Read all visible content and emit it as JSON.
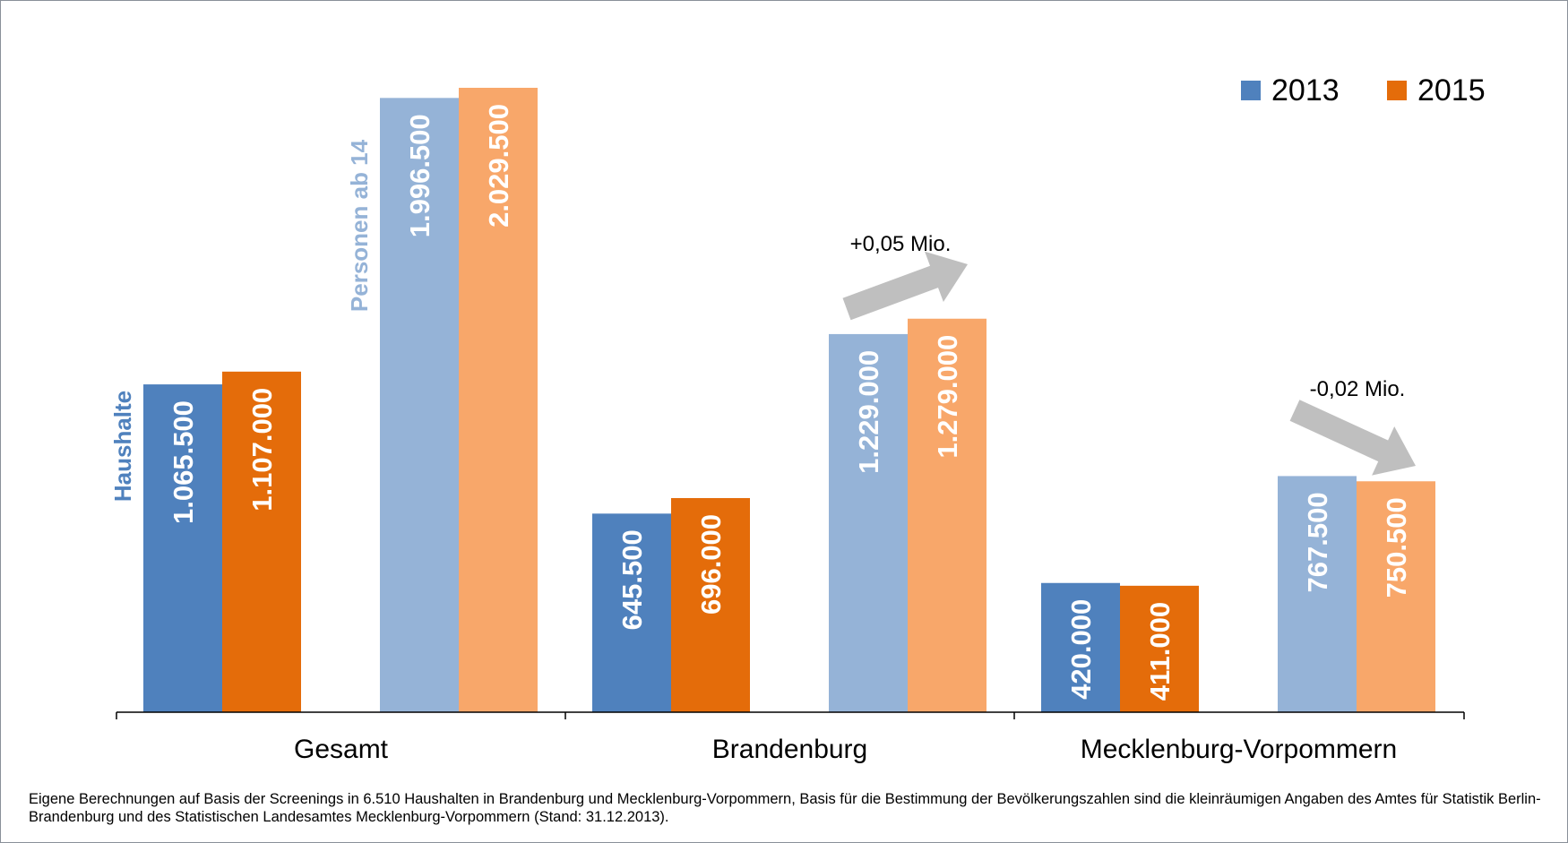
{
  "chart_data": {
    "type": "bar",
    "categories": [
      "Gesamt",
      "Brandenburg",
      "Mecklenburg-Vorpommern"
    ],
    "groups": [
      {
        "name": "Haushalte",
        "label": "Haushalte"
      },
      {
        "name": "Personen ab 14",
        "label": "Personen ab 14"
      }
    ],
    "series": [
      {
        "name": "2013",
        "group": "Haushalte",
        "values": [
          1065500,
          645500,
          420000
        ],
        "labels": [
          "1.065.500",
          "645.500",
          "420.000"
        ],
        "color": "#4F81BD"
      },
      {
        "name": "2015",
        "group": "Haushalte",
        "values": [
          1107000,
          696000,
          411000
        ],
        "labels": [
          "1.107.000",
          "696.000",
          "411.000"
        ],
        "color": "#E46C0A"
      },
      {
        "name": "2013",
        "group": "Personen ab 14",
        "values": [
          1996500,
          1229000,
          767500
        ],
        "labels": [
          "1.996.500",
          "1.229.000",
          "767.500"
        ],
        "color": "#95B3D7"
      },
      {
        "name": "2015",
        "group": "Personen ab 14",
        "values": [
          2029500,
          1279000,
          750500
        ],
        "labels": [
          "2.029.500",
          "1.279.000",
          "750.500"
        ],
        "color": "#F8A76A"
      }
    ],
    "legend": {
      "position": "top-right",
      "items": [
        {
          "label": "2013",
          "color": "#4F81BD"
        },
        {
          "label": "2015",
          "color": "#E46C0A"
        }
      ]
    },
    "annotations": [
      {
        "text": "+0,05 Mio.",
        "category": "Brandenburg",
        "direction": "up"
      },
      {
        "text": "-0,02 Mio.",
        "category": "Mecklenburg-Vorpommern",
        "direction": "down"
      }
    ],
    "ylim": [
      0,
      2200000
    ],
    "xlabel": "",
    "ylabel": "",
    "grid": false
  },
  "footnote": "Eigene Berechnungen auf Basis der Screenings in 6.510 Haushalten in Brandenburg und Mecklenburg-Vorpommern, Basis für die Bestimmung der Bevölkerungszahlen sind die kleinräumigen Angaben des Amtes für Statistik Berlin-Brandenburg und des Statistischen Landesamtes Mecklenburg-Vorpommern (Stand: 31.12.2013).",
  "colors": {
    "arrow": "#BFBFBF",
    "axis": "#000000"
  }
}
